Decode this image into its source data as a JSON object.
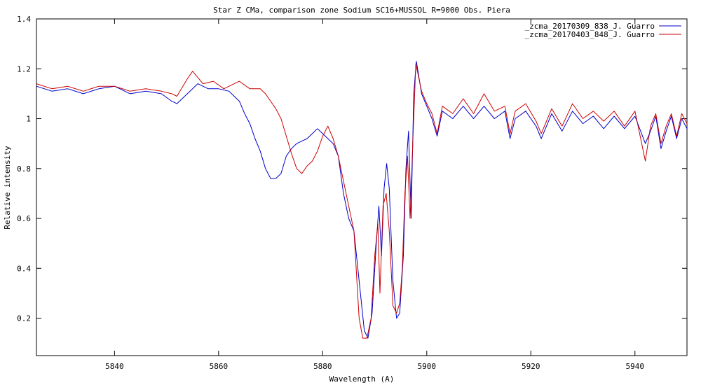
{
  "chart_data": {
    "type": "line",
    "title": "Star Z CMa,  comparison zone Sodium  SC16+MUSSOL    R=9000  Obs. Piera",
    "xlabel": "Wavelength (A)",
    "ylabel": "Relative intensity",
    "xlim": [
      5825,
      5950
    ],
    "ylim": [
      0.05,
      1.4
    ],
    "xticks": [
      5840,
      5860,
      5880,
      5900,
      5920,
      5940
    ],
    "yticks": [
      0.2,
      0.4,
      0.6,
      0.8,
      1,
      1.2,
      1.4
    ],
    "ytick_labels": [
      "0.2",
      "0.4",
      "0.6",
      "0.8",
      "1",
      "1.2",
      "1.4"
    ],
    "legend_position": "top-right",
    "grid": false,
    "series": [
      {
        "name": "_zcma_20170309_838_J. Guarro",
        "color": "#0000cc",
        "points": [
          [
            5825,
            1.13
          ],
          [
            5828,
            1.11
          ],
          [
            5831,
            1.12
          ],
          [
            5834,
            1.1
          ],
          [
            5837,
            1.12
          ],
          [
            5840,
            1.13
          ],
          [
            5843,
            1.1
          ],
          [
            5846,
            1.11
          ],
          [
            5849,
            1.1
          ],
          [
            5851,
            1.07
          ],
          [
            5852,
            1.06
          ],
          [
            5854,
            1.1
          ],
          [
            5856,
            1.14
          ],
          [
            5858,
            1.12
          ],
          [
            5860,
            1.12
          ],
          [
            5862,
            1.11
          ],
          [
            5863,
            1.09
          ],
          [
            5864,
            1.07
          ],
          [
            5865,
            1.02
          ],
          [
            5866,
            0.98
          ],
          [
            5867,
            0.92
          ],
          [
            5868,
            0.87
          ],
          [
            5869,
            0.8
          ],
          [
            5870,
            0.76
          ],
          [
            5871,
            0.76
          ],
          [
            5872,
            0.78
          ],
          [
            5873,
            0.85
          ],
          [
            5874,
            0.88
          ],
          [
            5875,
            0.9
          ],
          [
            5876,
            0.91
          ],
          [
            5877,
            0.92
          ],
          [
            5878,
            0.94
          ],
          [
            5879,
            0.96
          ],
          [
            5880,
            0.94
          ],
          [
            5881,
            0.92
          ],
          [
            5882,
            0.9
          ],
          [
            5883,
            0.85
          ],
          [
            5884,
            0.7
          ],
          [
            5885,
            0.6
          ],
          [
            5886,
            0.55
          ],
          [
            5887,
            0.35
          ],
          [
            5888,
            0.15
          ],
          [
            5888.7,
            0.12
          ],
          [
            5889.5,
            0.22
          ],
          [
            5890.3,
            0.5
          ],
          [
            5890.8,
            0.65
          ],
          [
            5891.3,
            0.45
          ],
          [
            5891.8,
            0.72
          ],
          [
            5892.3,
            0.82
          ],
          [
            5892.8,
            0.72
          ],
          [
            5893.5,
            0.35
          ],
          [
            5894.2,
            0.2
          ],
          [
            5894.8,
            0.22
          ],
          [
            5895.5,
            0.45
          ],
          [
            5896,
            0.8
          ],
          [
            5896.5,
            0.95
          ],
          [
            5897,
            0.6
          ],
          [
            5897.5,
            1.1
          ],
          [
            5898,
            1.23
          ],
          [
            5899,
            1.1
          ],
          [
            5900,
            1.05
          ],
          [
            5901,
            1.0
          ],
          [
            5902,
            0.93
          ],
          [
            5903,
            1.03
          ],
          [
            5905,
            1.0
          ],
          [
            5907,
            1.05
          ],
          [
            5909,
            1.0
          ],
          [
            5911,
            1.05
          ],
          [
            5913,
            1.0
          ],
          [
            5915,
            1.03
          ],
          [
            5916,
            0.92
          ],
          [
            5917,
            1.0
          ],
          [
            5919,
            1.03
          ],
          [
            5921,
            0.97
          ],
          [
            5922,
            0.92
          ],
          [
            5924,
            1.02
          ],
          [
            5926,
            0.95
          ],
          [
            5928,
            1.03
          ],
          [
            5930,
            0.98
          ],
          [
            5932,
            1.01
          ],
          [
            5934,
            0.96
          ],
          [
            5936,
            1.01
          ],
          [
            5938,
            0.96
          ],
          [
            5940,
            1.01
          ],
          [
            5942,
            0.9
          ],
          [
            5943,
            0.95
          ],
          [
            5944,
            1.01
          ],
          [
            5945,
            0.88
          ],
          [
            5946,
            0.95
          ],
          [
            5947,
            1.01
          ],
          [
            5948,
            0.92
          ],
          [
            5949,
            1.0
          ],
          [
            5950,
            0.96
          ]
        ]
      },
      {
        "name": "_zcma_20170403_848_J. Guarro",
        "color": "#cc0000",
        "points": [
          [
            5825,
            1.14
          ],
          [
            5828,
            1.12
          ],
          [
            5831,
            1.13
          ],
          [
            5834,
            1.11
          ],
          [
            5837,
            1.13
          ],
          [
            5840,
            1.13
          ],
          [
            5843,
            1.11
          ],
          [
            5846,
            1.12
          ],
          [
            5849,
            1.11
          ],
          [
            5851,
            1.1
          ],
          [
            5852,
            1.09
          ],
          [
            5854,
            1.16
          ],
          [
            5855,
            1.19
          ],
          [
            5857,
            1.14
          ],
          [
            5859,
            1.15
          ],
          [
            5861,
            1.12
          ],
          [
            5863,
            1.14
          ],
          [
            5864,
            1.15
          ],
          [
            5866,
            1.12
          ],
          [
            5868,
            1.12
          ],
          [
            5869,
            1.1
          ],
          [
            5870,
            1.07
          ],
          [
            5871,
            1.04
          ],
          [
            5872,
            1.0
          ],
          [
            5873,
            0.93
          ],
          [
            5874,
            0.86
          ],
          [
            5875,
            0.8
          ],
          [
            5876,
            0.78
          ],
          [
            5877,
            0.81
          ],
          [
            5878,
            0.83
          ],
          [
            5879,
            0.87
          ],
          [
            5880,
            0.93
          ],
          [
            5881,
            0.97
          ],
          [
            5882,
            0.92
          ],
          [
            5883,
            0.85
          ],
          [
            5884,
            0.75
          ],
          [
            5885,
            0.65
          ],
          [
            5886,
            0.55
          ],
          [
            5887,
            0.2
          ],
          [
            5887.7,
            0.12
          ],
          [
            5888.5,
            0.12
          ],
          [
            5889.3,
            0.2
          ],
          [
            5890,
            0.45
          ],
          [
            5890.6,
            0.58
          ],
          [
            5891,
            0.3
          ],
          [
            5891.6,
            0.65
          ],
          [
            5892.2,
            0.7
          ],
          [
            5892.8,
            0.55
          ],
          [
            5893.5,
            0.25
          ],
          [
            5894.2,
            0.22
          ],
          [
            5894.8,
            0.26
          ],
          [
            5895.3,
            0.4
          ],
          [
            5895.8,
            0.7
          ],
          [
            5896.3,
            0.85
          ],
          [
            5896.8,
            0.6
          ],
          [
            5897.3,
            0.9
          ],
          [
            5897.9,
            1.22
          ],
          [
            5899,
            1.11
          ],
          [
            5900,
            1.06
          ],
          [
            5901,
            1.02
          ],
          [
            5902,
            0.94
          ],
          [
            5903,
            1.05
          ],
          [
            5905,
            1.02
          ],
          [
            5907,
            1.08
          ],
          [
            5909,
            1.02
          ],
          [
            5911,
            1.1
          ],
          [
            5913,
            1.03
          ],
          [
            5915,
            1.05
          ],
          [
            5916,
            0.94
          ],
          [
            5917,
            1.03
          ],
          [
            5919,
            1.06
          ],
          [
            5921,
            0.99
          ],
          [
            5922,
            0.94
          ],
          [
            5924,
            1.04
          ],
          [
            5926,
            0.97
          ],
          [
            5928,
            1.06
          ],
          [
            5930,
            1.0
          ],
          [
            5932,
            1.03
          ],
          [
            5934,
            0.99
          ],
          [
            5936,
            1.03
          ],
          [
            5938,
            0.97
          ],
          [
            5940,
            1.03
          ],
          [
            5942,
            0.83
          ],
          [
            5943,
            0.97
          ],
          [
            5944,
            1.02
          ],
          [
            5945,
            0.9
          ],
          [
            5946,
            0.97
          ],
          [
            5947,
            1.02
          ],
          [
            5948,
            0.93
          ],
          [
            5949,
            1.02
          ],
          [
            5950,
            0.98
          ]
        ]
      }
    ]
  }
}
